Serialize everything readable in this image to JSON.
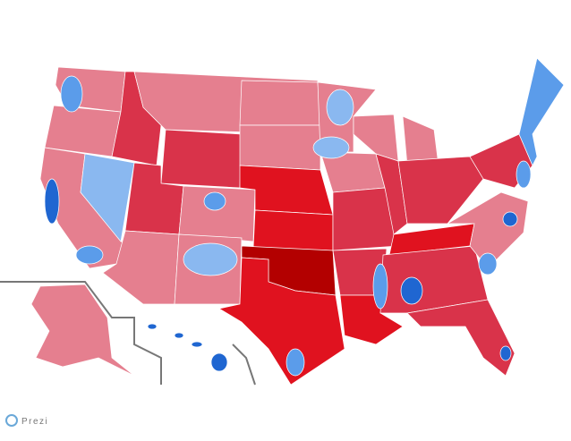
{
  "logo": {
    "text": "Prezi"
  }
}
